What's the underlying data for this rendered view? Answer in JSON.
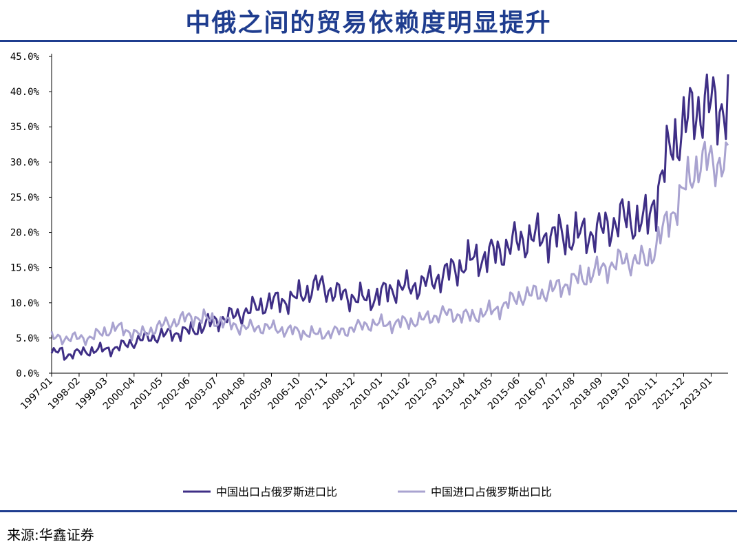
{
  "title": "中俄之间的贸易依赖度明显提升",
  "source": "来源:华鑫证券",
  "colors": {
    "title": "#1f3d8f",
    "rule": "#1f3d8f",
    "export": "#3f2f86",
    "import": "#a9a3d0"
  },
  "chart_data": {
    "type": "line",
    "title": "中俄之间的贸易依赖度明显提升",
    "xlabel": "",
    "ylabel": "",
    "ylim": [
      0,
      45
    ],
    "y_ticks": [
      "0.0%",
      "5.0%",
      "10.0%",
      "15.0%",
      "20.0%",
      "25.0%",
      "30.0%",
      "35.0%",
      "40.0%",
      "45.0%"
    ],
    "x_ticks": [
      "1997-01",
      "1998-02",
      "1999-03",
      "2000-04",
      "2001-05",
      "2002-06",
      "2003-07",
      "2004-08",
      "2005-09",
      "2006-10",
      "2007-11",
      "2008-12",
      "2010-01",
      "2011-02",
      "2012-03",
      "2013-04",
      "2014-05",
      "2015-06",
      "2016-07",
      "2017-08",
      "2018-09",
      "2019-10",
      "2020-11",
      "2021-12",
      "2023-01"
    ],
    "x_start": "1997-01",
    "x_end": "2023-09",
    "grid": false,
    "legend_position": "bottom",
    "series": [
      {
        "name": "中国出口占俄罗斯进口比",
        "color": "#3f2f86",
        "annual_values": [
          2.5,
          3.2,
          3.5,
          4.8,
          5.5,
          6.0,
          7.5,
          8.5,
          10.0,
          10.5,
          12.5,
          11.0,
          10.5,
          12.0,
          12.5,
          14.0,
          16.0,
          17.0,
          19.0,
          19.5,
          19.5,
          20.0,
          22.0,
          21.5,
          33.0,
          38.0
        ]
      },
      {
        "name": "中国进口占俄罗斯出口比",
        "color": "#a9a3d0",
        "annual_values": [
          5.0,
          5.0,
          6.5,
          5.5,
          7.0,
          8.0,
          7.5,
          6.5,
          6.5,
          6.0,
          5.5,
          6.0,
          7.0,
          7.0,
          7.5,
          8.5,
          8.0,
          9.0,
          11.0,
          11.5,
          13.0,
          14.5,
          16.0,
          16.0,
          23.0,
          30.0
        ]
      }
    ]
  }
}
